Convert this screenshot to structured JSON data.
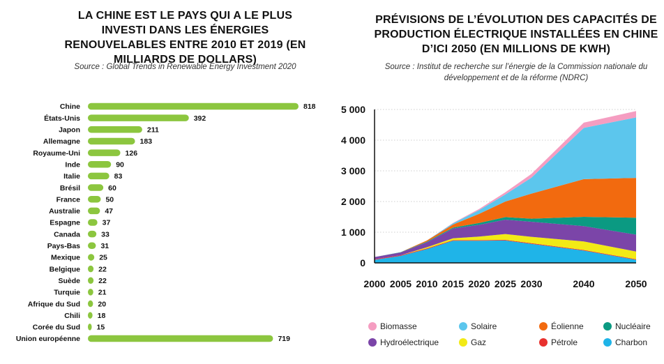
{
  "chart_data": [
    {
      "type": "bar",
      "title": "LA CHINE EST LE PAYS QUI A LE PLUS INVESTI DANS LES ÉNERGIES RENOUVELABLES ENTRE 2010 ET 2019 (EN MILLIARDS DE DOLLARS)",
      "subtitle": "Source : Global Trends in Renewable Energy Investment 2020",
      "orientation": "horizontal",
      "color": "#8cc63f",
      "categories": [
        "Chine",
        "États-Unis",
        "Japon",
        "Allemagne",
        "Royaume-Uni",
        "Inde",
        "Italie",
        "Brésil",
        "France",
        "Australie",
        "Espagne",
        "Canada",
        "Pays-Bas",
        "Mexique",
        "Belgique",
        "Suède",
        "Turquie",
        "Afrique du Sud",
        "Chili",
        "Corée du Sud",
        "Union européenne"
      ],
      "values": [
        818,
        392,
        211,
        183,
        126,
        90,
        83,
        60,
        50,
        47,
        37,
        33,
        31,
        25,
        22,
        22,
        21,
        20,
        18,
        15,
        719
      ],
      "grid": false
    },
    {
      "type": "area",
      "stacked": true,
      "title": "PRÉVISIONS DE L’ÉVOLUTION DES CAPACITÉS DE PRODUCTION ÉLECTRIQUE INSTALLÉES EN CHINE D’ICI 2050 (EN MILLIONS DE KWH)",
      "subtitle": "Source : Institut de recherche sur l’énergie de la Commission nationale du développement et de la réforme (NDRC)",
      "x": [
        "2000",
        "2005",
        "2010",
        "2015",
        "2020",
        "2025",
        "2030",
        "2040",
        "2050"
      ],
      "y_ticks": [
        "0",
        "1 000",
        "2 000",
        "3 000",
        "4 000",
        "5 000"
      ],
      "ylim": [
        0,
        5000
      ],
      "grid": true,
      "legend_position": "bottom",
      "series": [
        {
          "name": "Charbon",
          "color": "#1fb4e8",
          "values": [
            100,
            230,
            450,
            720,
            720,
            730,
            620,
            400,
            100
          ]
        },
        {
          "name": "Pétrole",
          "color": "#e8312e",
          "values": [
            20,
            20,
            20,
            20,
            20,
            20,
            20,
            20,
            20
          ]
        },
        {
          "name": "Gaz",
          "color": "#f2ea16",
          "values": [
            0,
            0,
            40,
            60,
            120,
            190,
            210,
            280,
            250
          ]
        },
        {
          "name": "Hydroélectrique",
          "color": "#7b45a8",
          "values": [
            70,
            90,
            160,
            320,
            380,
            470,
            490,
            500,
            550
          ]
        },
        {
          "name": "Nucléaire",
          "color": "#0b9a82",
          "values": [
            0,
            10,
            20,
            30,
            60,
            80,
            100,
            300,
            550
          ]
        },
        {
          "name": "Éolienne",
          "color": "#f26a0f",
          "values": [
            0,
            0,
            40,
            100,
            300,
            510,
            820,
            1230,
            1300
          ]
        },
        {
          "name": "Solaire",
          "color": "#5cc6ed",
          "values": [
            0,
            0,
            0,
            40,
            120,
            230,
            520,
            1670,
            1970
          ]
        },
        {
          "name": "Biomasse",
          "color": "#f59dc1",
          "values": [
            0,
            0,
            0,
            10,
            40,
            70,
            120,
            170,
            210
          ]
        }
      ],
      "legend_order": [
        "Biomasse",
        "Solaire",
        "Éolienne",
        "Nucléaire",
        "Hydroélectrique",
        "Gaz",
        "Pétrole",
        "Charbon"
      ]
    }
  ]
}
